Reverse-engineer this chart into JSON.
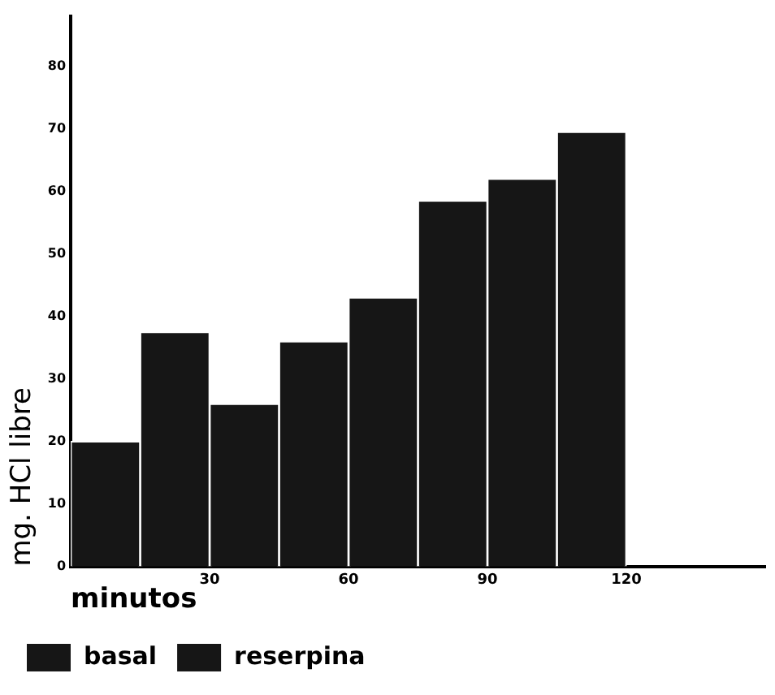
{
  "chart_data": {
    "type": "bar",
    "xlabel": "minutos",
    "ylabel": "mg. HCl libre",
    "series": [
      {
        "name": "basal",
        "color": "#161616",
        "x": [
          7.5,
          37.5,
          67.5,
          97.5
        ],
        "values": [
          20,
          26,
          43,
          62
        ]
      },
      {
        "name": "reserpina",
        "color": "#161616",
        "x": [
          22.5,
          52.5,
          82.5,
          112.5
        ],
        "values": [
          37.5,
          36,
          58.5,
          69.5
        ]
      }
    ],
    "xlim": [
      0,
      150
    ],
    "xticks": [
      30,
      60,
      90,
      120
    ],
    "ylim": [
      0,
      88
    ],
    "yticks": [
      0,
      10,
      20,
      30,
      40,
      50,
      60,
      70,
      80
    ],
    "grid": false,
    "legend": "bottom"
  }
}
